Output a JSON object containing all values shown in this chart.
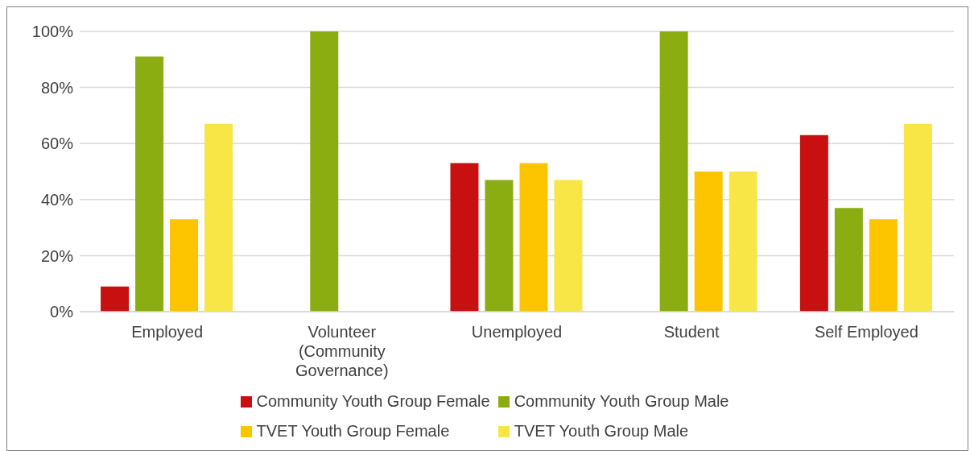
{
  "chart_data": {
    "type": "bar",
    "categories": [
      "Employed",
      "Volunteer (Community Governance)",
      "Unemployed",
      "Student",
      "Self Employed"
    ],
    "series": [
      {
        "name": "Community Youth Group Female",
        "color": "#c81010",
        "values": [
          9,
          null,
          53,
          null,
          63
        ]
      },
      {
        "name": "Community Youth Group Male",
        "color": "#8bad12",
        "values": [
          91,
          100,
          47,
          100,
          37
        ]
      },
      {
        "name": "TVET Youth Group Female",
        "color": "#fcc500",
        "values": [
          33,
          null,
          53,
          50,
          33
        ]
      },
      {
        "name": "TVET Youth Group Male",
        "color": "#f7e646",
        "values": [
          67,
          null,
          47,
          50,
          67
        ]
      }
    ],
    "ylim": [
      0,
      100
    ],
    "yticks": [
      {
        "value": 0,
        "label": "0%"
      },
      {
        "value": 20,
        "label": "20%"
      },
      {
        "value": 40,
        "label": "40%"
      },
      {
        "value": 60,
        "label": "60%"
      },
      {
        "value": 80,
        "label": "80%"
      },
      {
        "value": 100,
        "label": "100%"
      }
    ],
    "grid": "y",
    "legend": "bottom"
  }
}
